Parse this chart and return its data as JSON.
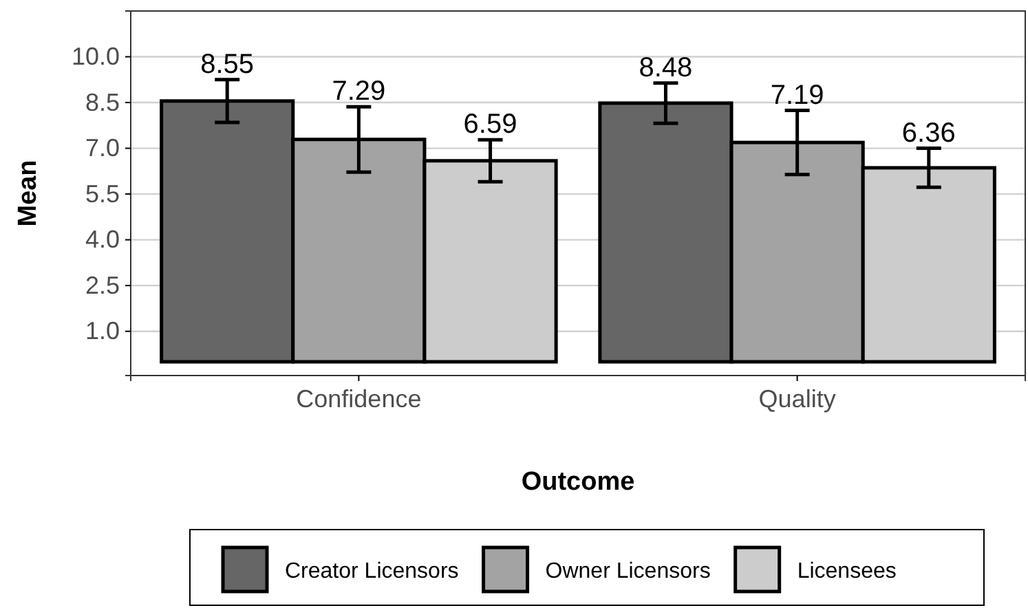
{
  "chart_data": {
    "type": "bar",
    "xlabel": "Outcome",
    "ylabel": "Mean",
    "categories": [
      "Confidence",
      "Quality"
    ],
    "series": [
      {
        "name": "Creator Licensors",
        "color": "#666666",
        "values": [
          8.55,
          8.48
        ],
        "errors": [
          0.7,
          0.66
        ]
      },
      {
        "name": "Owner Licensors",
        "color": "#a3a3a3",
        "values": [
          7.29,
          7.19
        ],
        "errors": [
          1.07,
          1.05
        ]
      },
      {
        "name": "Licensees",
        "color": "#cccccc",
        "values": [
          6.59,
          6.36
        ],
        "errors": [
          0.69,
          0.64
        ]
      }
    ],
    "ylim": [
      -0.45,
      11.5
    ],
    "yticks": [
      {
        "value": 1,
        "label": "1.0"
      },
      {
        "value": 2.5,
        "label": "2.5"
      },
      {
        "value": 4,
        "label": "4.0"
      },
      {
        "value": 5.5,
        "label": "5.5"
      },
      {
        "value": 7,
        "label": "7.0"
      },
      {
        "value": 8.5,
        "label": "8.5"
      },
      {
        "value": 10,
        "label": "10.0"
      }
    ],
    "grid": "y",
    "legend": "bottom",
    "data_labels": true
  }
}
